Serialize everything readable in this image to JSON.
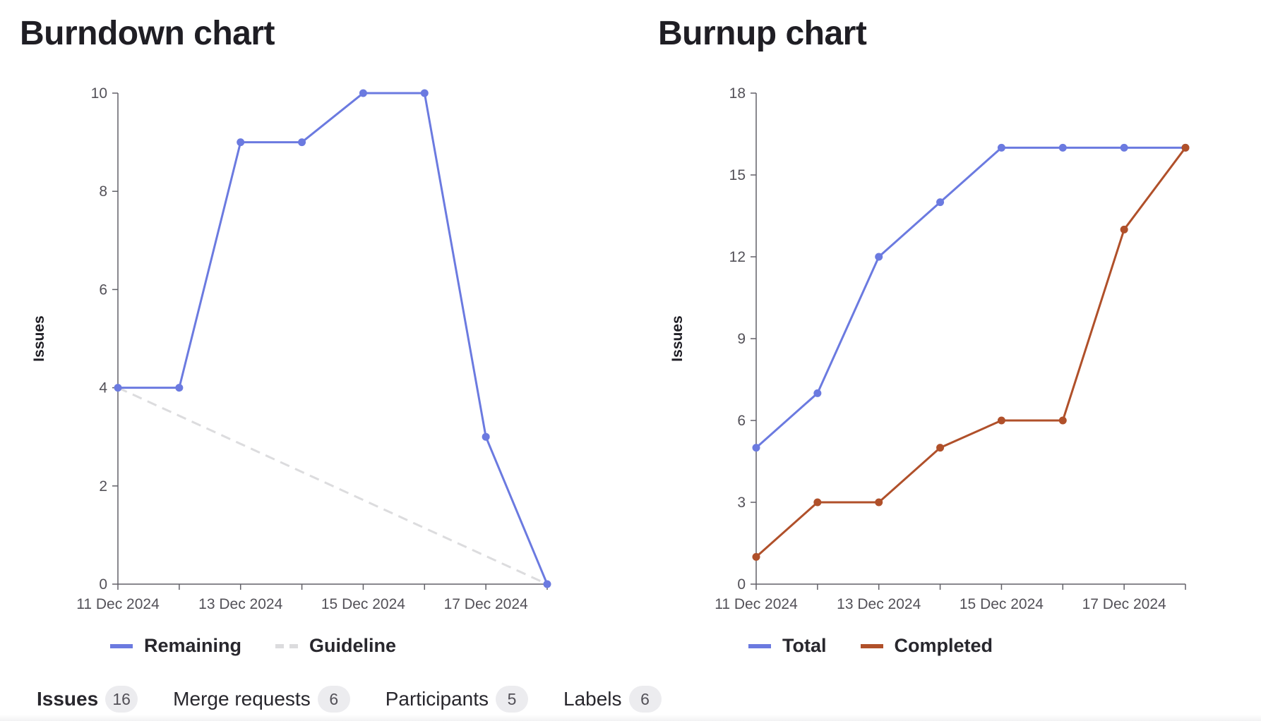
{
  "burndown": {
    "title": "Burndown chart",
    "legend": [
      {
        "label": "Remaining",
        "color": "#6b7ae0",
        "style": "solid"
      },
      {
        "label": "Guideline",
        "color": "#dcdcde",
        "style": "dashed"
      }
    ]
  },
  "burnup": {
    "title": "Burnup chart",
    "legend": [
      {
        "label": "Total",
        "color": "#6b7ae0",
        "style": "solid"
      },
      {
        "label": "Completed",
        "color": "#b0502a",
        "style": "solid"
      }
    ]
  },
  "tabs": [
    {
      "label": "Issues",
      "count": "16",
      "active": true
    },
    {
      "label": "Merge requests",
      "count": "6",
      "active": false
    },
    {
      "label": "Participants",
      "count": "5",
      "active": false
    },
    {
      "label": "Labels",
      "count": "6",
      "active": false
    }
  ],
  "chart_data": [
    {
      "type": "line",
      "title": "Burndown chart",
      "xlabel": "",
      "ylabel": "Issues",
      "x": [
        "11 Dec 2024",
        "12 Dec 2024",
        "13 Dec 2024",
        "14 Dec 2024",
        "15 Dec 2024",
        "16 Dec 2024",
        "17 Dec 2024",
        "18 Dec 2024"
      ],
      "x_tick_labels": [
        "11 Dec 2024",
        "13 Dec 2024",
        "15 Dec 2024",
        "17 Dec 2024"
      ],
      "ylim": [
        0,
        10
      ],
      "y_ticks": [
        0,
        2,
        4,
        6,
        8,
        10
      ],
      "grid": false,
      "legend_position": "bottom-left",
      "series": [
        {
          "name": "Remaining",
          "color": "#6b7ae0",
          "style": "solid",
          "markers": true,
          "values": [
            4,
            4,
            9,
            9,
            10,
            10,
            3,
            0
          ]
        },
        {
          "name": "Guideline",
          "color": "#dcdcde",
          "style": "dashed",
          "markers": false,
          "values": [
            4,
            null,
            null,
            null,
            null,
            null,
            null,
            0
          ]
        }
      ]
    },
    {
      "type": "line",
      "title": "Burnup chart",
      "xlabel": "",
      "ylabel": "Issues",
      "x": [
        "11 Dec 2024",
        "12 Dec 2024",
        "13 Dec 2024",
        "14 Dec 2024",
        "15 Dec 2024",
        "16 Dec 2024",
        "17 Dec 2024",
        "18 Dec 2024"
      ],
      "x_tick_labels": [
        "11 Dec 2024",
        "13 Dec 2024",
        "15 Dec 2024",
        "17 Dec 2024"
      ],
      "ylim": [
        0,
        18
      ],
      "y_ticks": [
        0,
        3,
        6,
        9,
        12,
        15,
        18
      ],
      "grid": false,
      "legend_position": "bottom-left",
      "series": [
        {
          "name": "Total",
          "color": "#6b7ae0",
          "style": "solid",
          "markers": true,
          "values": [
            5,
            7,
            12,
            14,
            16,
            16,
            16,
            16
          ]
        },
        {
          "name": "Completed",
          "color": "#b0502a",
          "style": "solid",
          "markers": true,
          "values": [
            1,
            3,
            3,
            5,
            6,
            6,
            13,
            16
          ]
        }
      ]
    }
  ]
}
